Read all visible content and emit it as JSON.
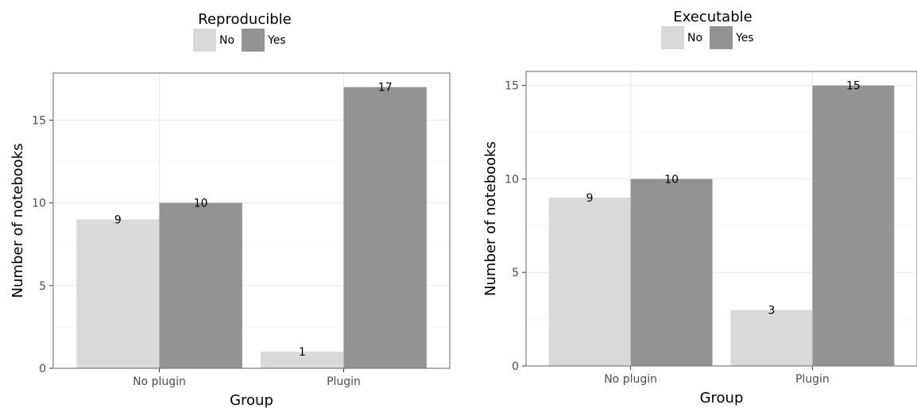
{
  "chart_data": [
    {
      "type": "bar",
      "legend_title": "Reproducible",
      "legend_position": "top",
      "xlabel": "Group",
      "ylabel": "Number of notebooks",
      "categories": [
        "No plugin",
        "Plugin"
      ],
      "series": [
        {
          "name": "No",
          "values": [
            9,
            1
          ],
          "color": "#d9d9d9"
        },
        {
          "name": "Yes",
          "values": [
            10,
            17
          ],
          "color": "#939393"
        }
      ],
      "ylim": [
        0,
        17.85
      ],
      "yticks": [
        0,
        5,
        10,
        15
      ],
      "grid": true
    },
    {
      "type": "bar",
      "legend_title": "Executable",
      "legend_position": "top",
      "xlabel": "Group",
      "ylabel": "Number of notebooks",
      "categories": [
        "No plugin",
        "Plugin"
      ],
      "series": [
        {
          "name": "No",
          "values": [
            9,
            3
          ],
          "color": "#d9d9d9"
        },
        {
          "name": "Yes",
          "values": [
            10,
            15
          ],
          "color": "#939393"
        }
      ],
      "ylim": [
        0,
        15.75
      ],
      "yticks": [
        0,
        5,
        10,
        15
      ],
      "grid": true
    }
  ]
}
